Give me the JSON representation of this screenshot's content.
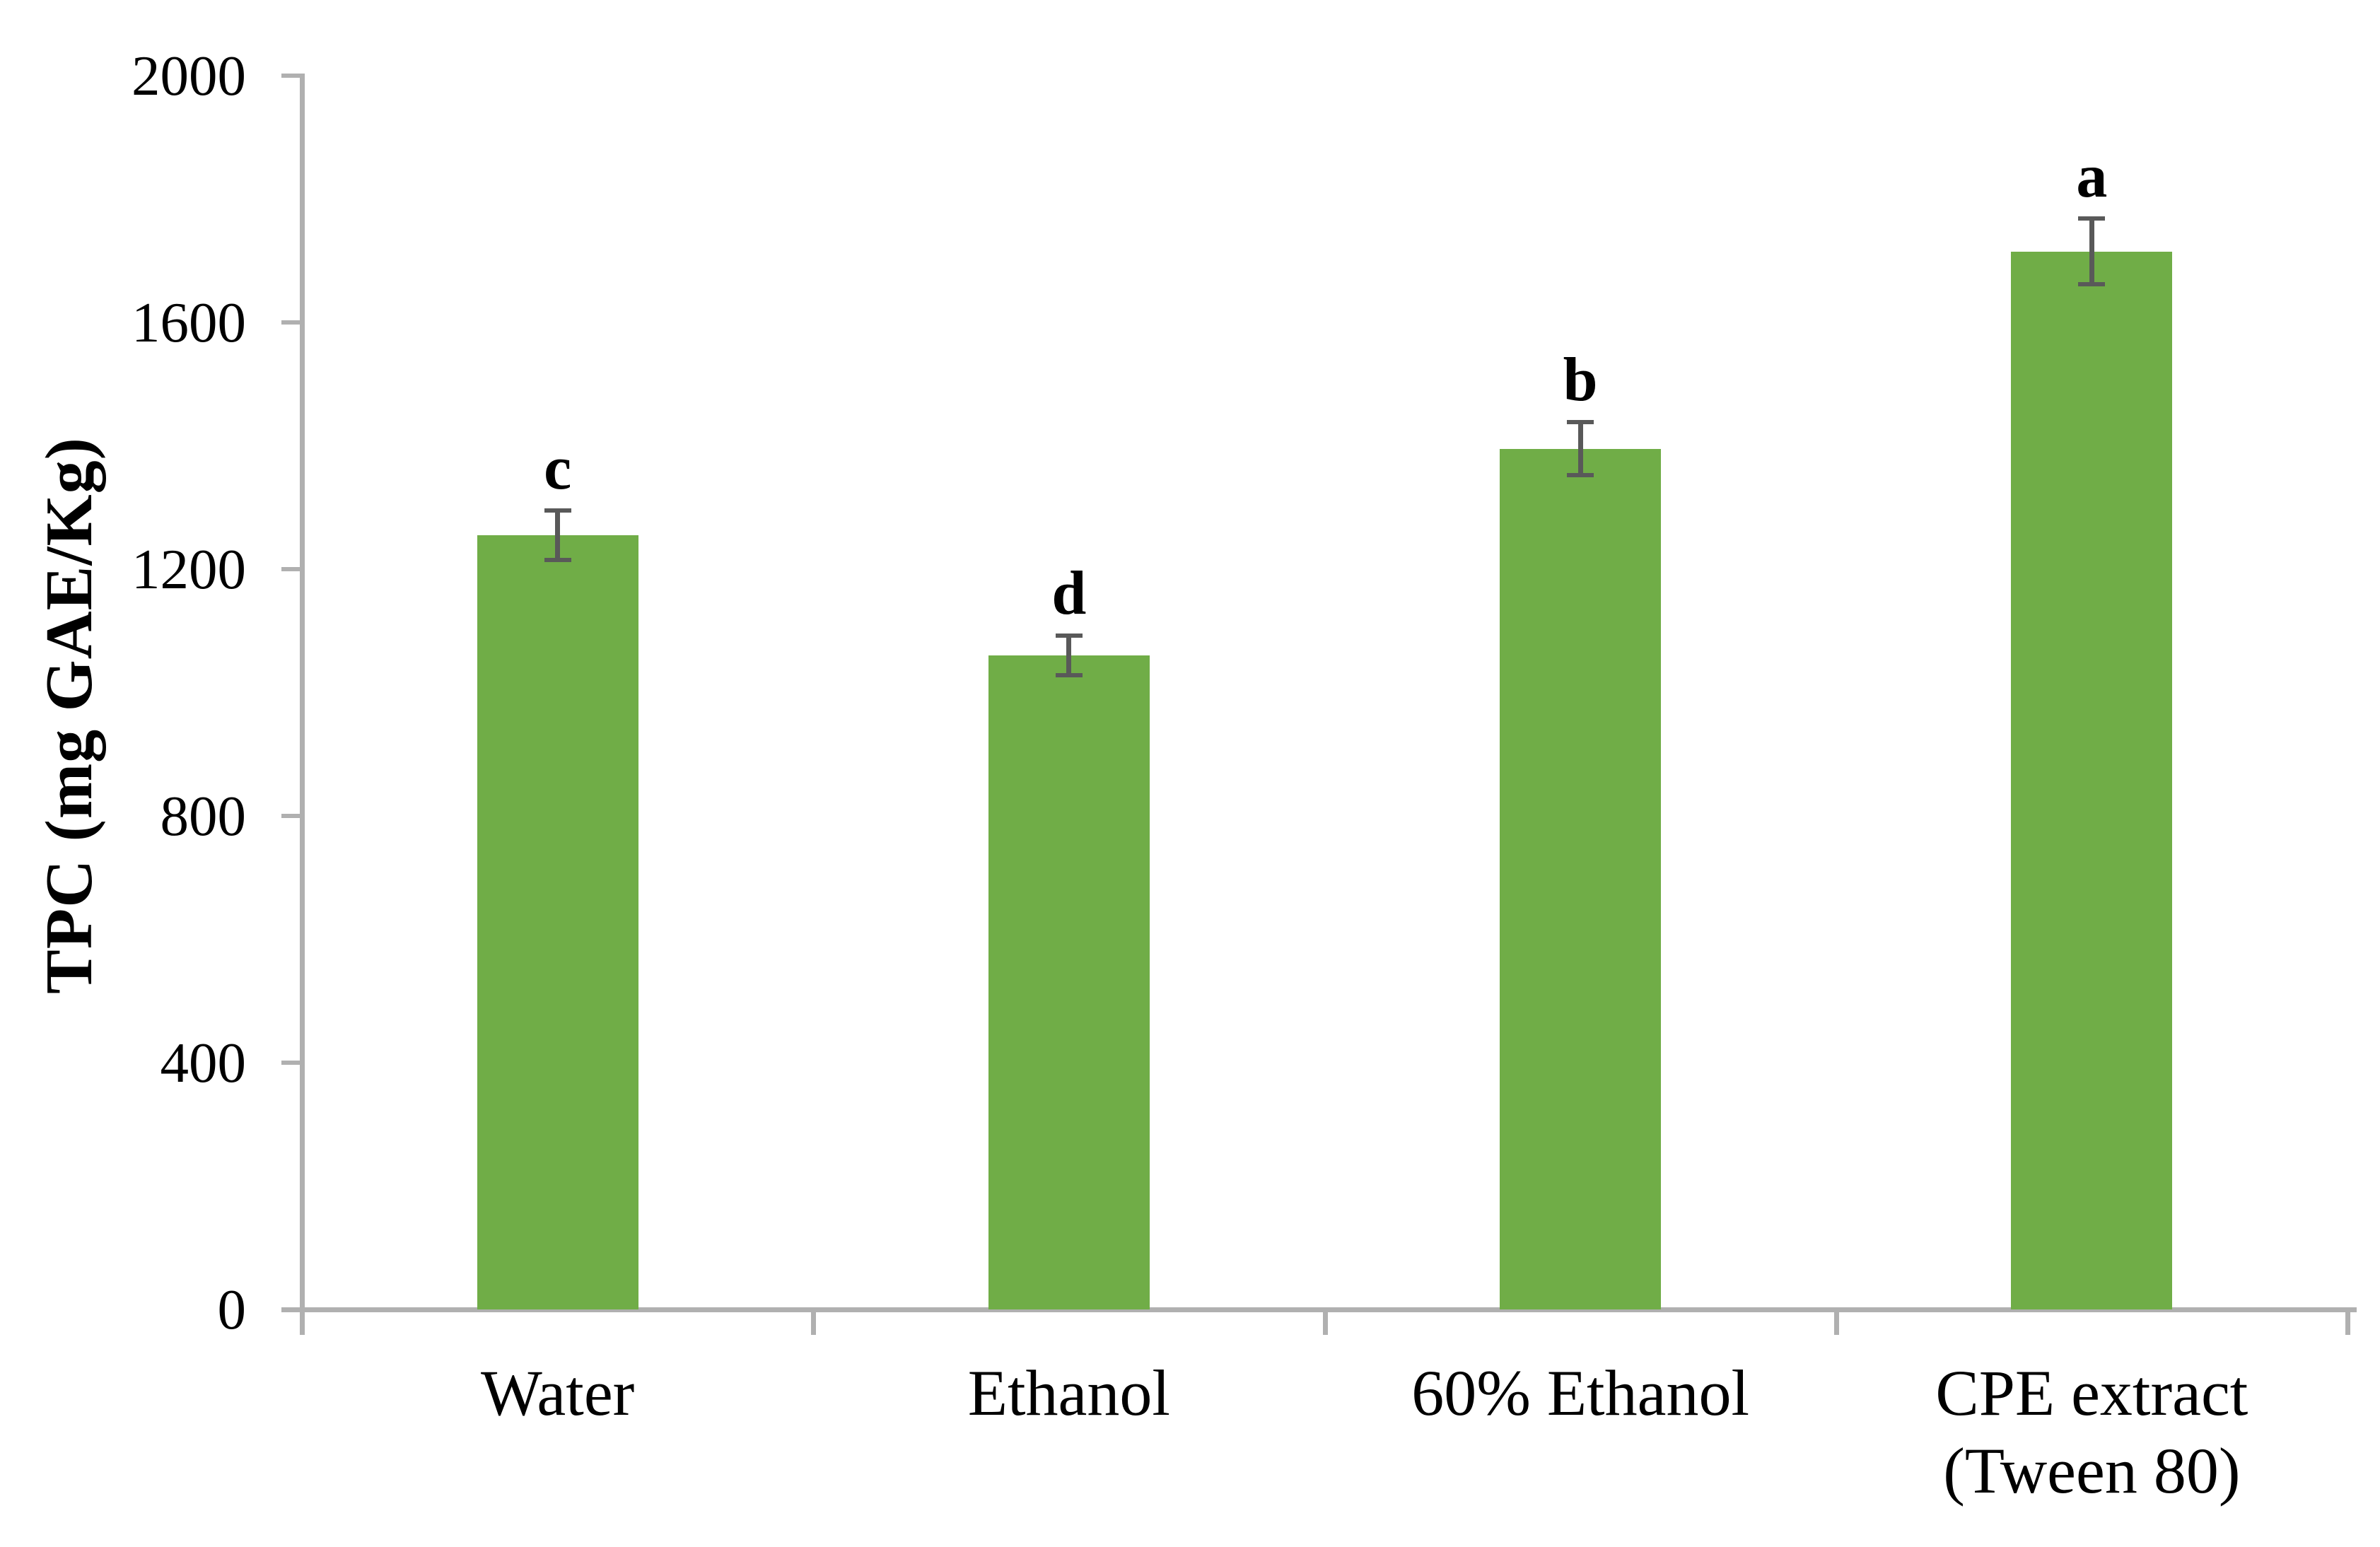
{
  "figure": {
    "background": "#FFFFFF"
  },
  "chart_data": {
    "type": "bar",
    "title": "",
    "xlabel": "",
    "ylabel": "TPC (mg GAE/Kg)",
    "ylim": [
      0,
      2000
    ],
    "ytick_interval": 400,
    "yticks": [
      0,
      400,
      800,
      1200,
      1600,
      2000
    ],
    "grid": "off",
    "legend": "none",
    "categories": [
      "Water",
      "Ethanol",
      "60% Ethanol",
      "CPE extract (Tween 80)"
    ],
    "category_label_lines": [
      [
        "Water"
      ],
      [
        "Ethanol"
      ],
      [
        "60% Ethanol"
      ],
      [
        "CPE extract",
        "(Tween 80)"
      ]
    ],
    "series": [
      {
        "name": "TPC",
        "values": [
          1255,
          1060,
          1395,
          1715
        ],
        "error_bars": [
          40,
          32,
          43,
          53
        ],
        "significance_letters": [
          "c",
          "d",
          "b",
          "a"
        ]
      }
    ],
    "colors": {
      "bar_fill": "#70AD47",
      "error_bar": "#595959",
      "axis_line": "#B0B0B0",
      "text": "#000000"
    }
  }
}
